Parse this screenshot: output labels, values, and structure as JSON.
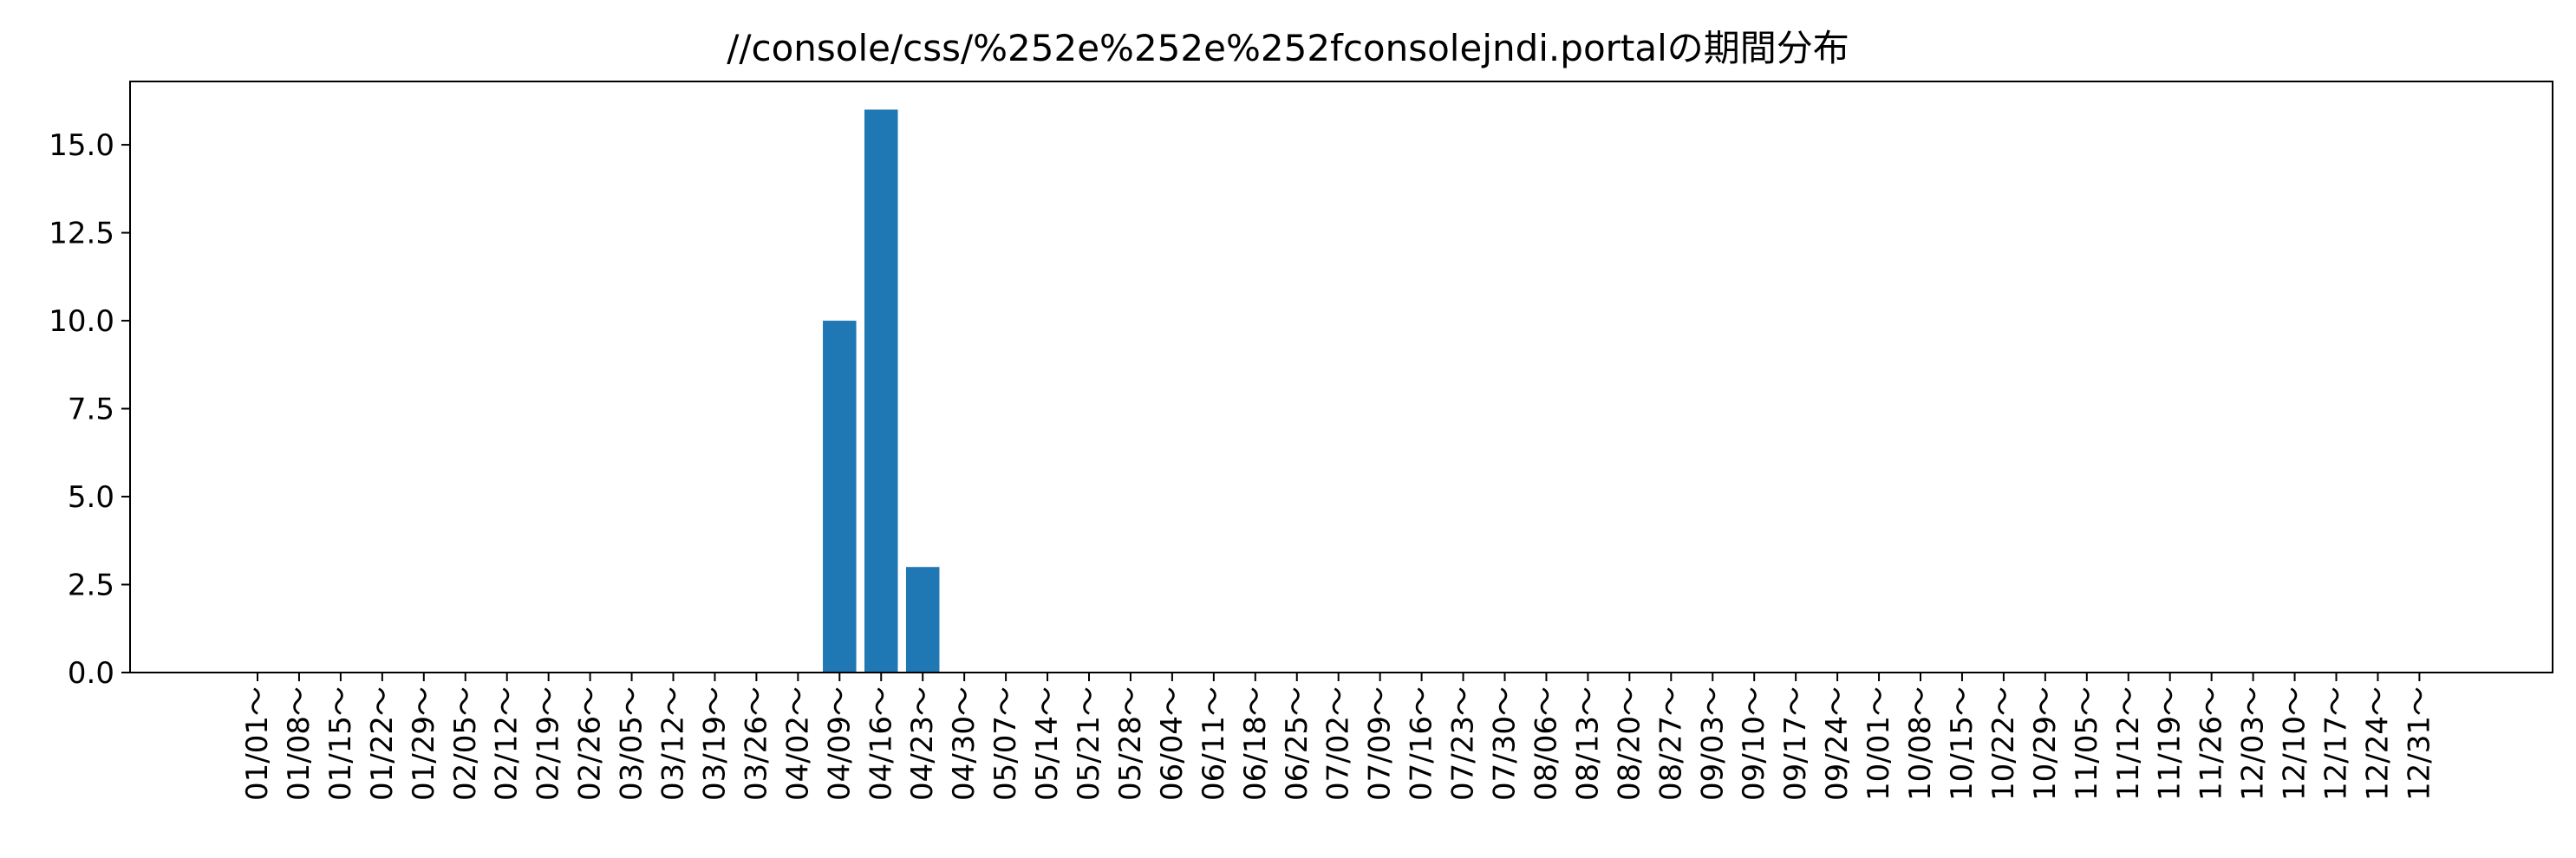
{
  "chart_data": {
    "type": "bar",
    "title": "//console/css/%252e%252e%252fconsolejndi.portalの期間分布",
    "xlabel": "",
    "ylabel": "",
    "ylim": [
      0,
      16.8
    ],
    "yticks": [
      "0.0",
      "2.5",
      "5.0",
      "7.5",
      "10.0",
      "12.5",
      "15.0"
    ],
    "grid": false,
    "legend": "none",
    "bar_color": "#1f77b4",
    "categories": [
      "01/01～",
      "01/08～",
      "01/15～",
      "01/22～",
      "01/29～",
      "02/05～",
      "02/12～",
      "02/19～",
      "02/26～",
      "03/05～",
      "03/12～",
      "03/19～",
      "03/26～",
      "04/02～",
      "04/09～",
      "04/16～",
      "04/23～",
      "04/30～",
      "05/07～",
      "05/14～",
      "05/21～",
      "05/28～",
      "06/04～",
      "06/11～",
      "06/18～",
      "06/25～",
      "07/02～",
      "07/09～",
      "07/16～",
      "07/23～",
      "07/30～",
      "08/06～",
      "08/13～",
      "08/20～",
      "08/27～",
      "09/03～",
      "09/10～",
      "09/17～",
      "09/24～",
      "10/01～",
      "10/08～",
      "10/15～",
      "10/22～",
      "10/29～",
      "11/05～",
      "11/12～",
      "11/19～",
      "11/26～",
      "12/03～",
      "12/10～",
      "12/17～",
      "12/24～",
      "12/31～"
    ],
    "values": [
      0,
      0,
      0,
      0,
      0,
      0,
      0,
      0,
      0,
      0,
      0,
      0,
      0,
      0,
      10,
      16,
      3,
      0,
      0,
      0,
      0,
      0,
      0,
      0,
      0,
      0,
      0,
      0,
      0,
      0,
      0,
      0,
      0,
      0,
      0,
      0,
      0,
      0,
      0,
      0,
      0,
      0,
      0,
      0,
      0,
      0,
      0,
      0,
      0,
      0,
      0,
      0,
      0
    ]
  }
}
